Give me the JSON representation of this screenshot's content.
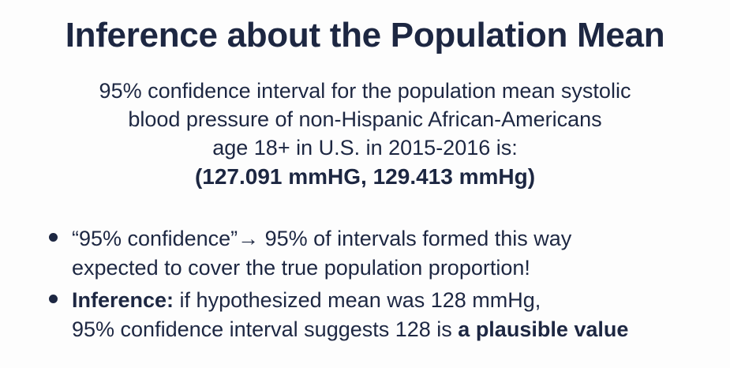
{
  "slide": {
    "title": "Inference about the Population Mean",
    "ci_statement": {
      "line1": "95% confidence interval for the population mean systolic",
      "line2": "blood pressure of non-Hispanic African-Americans",
      "line3": "age 18+ in U.S. in 2015-2016 is:",
      "interval": "(127.091 mmHG, 129.413 mmHg)"
    },
    "bullets": [
      {
        "line1": "“95% confidence”→ 95% of intervals formed this way",
        "line2": "expected to cover the true population proportion!"
      },
      {
        "lead_bold": "Inference:",
        "line1_rest": " if hypothesized mean was 128 mmHg,",
        "line2_pre": "95% confidence interval suggests 128 is ",
        "line2_bold": "a plausible value"
      }
    ],
    "colors": {
      "text": "#1d2742",
      "background": "#fdfdfd"
    }
  }
}
